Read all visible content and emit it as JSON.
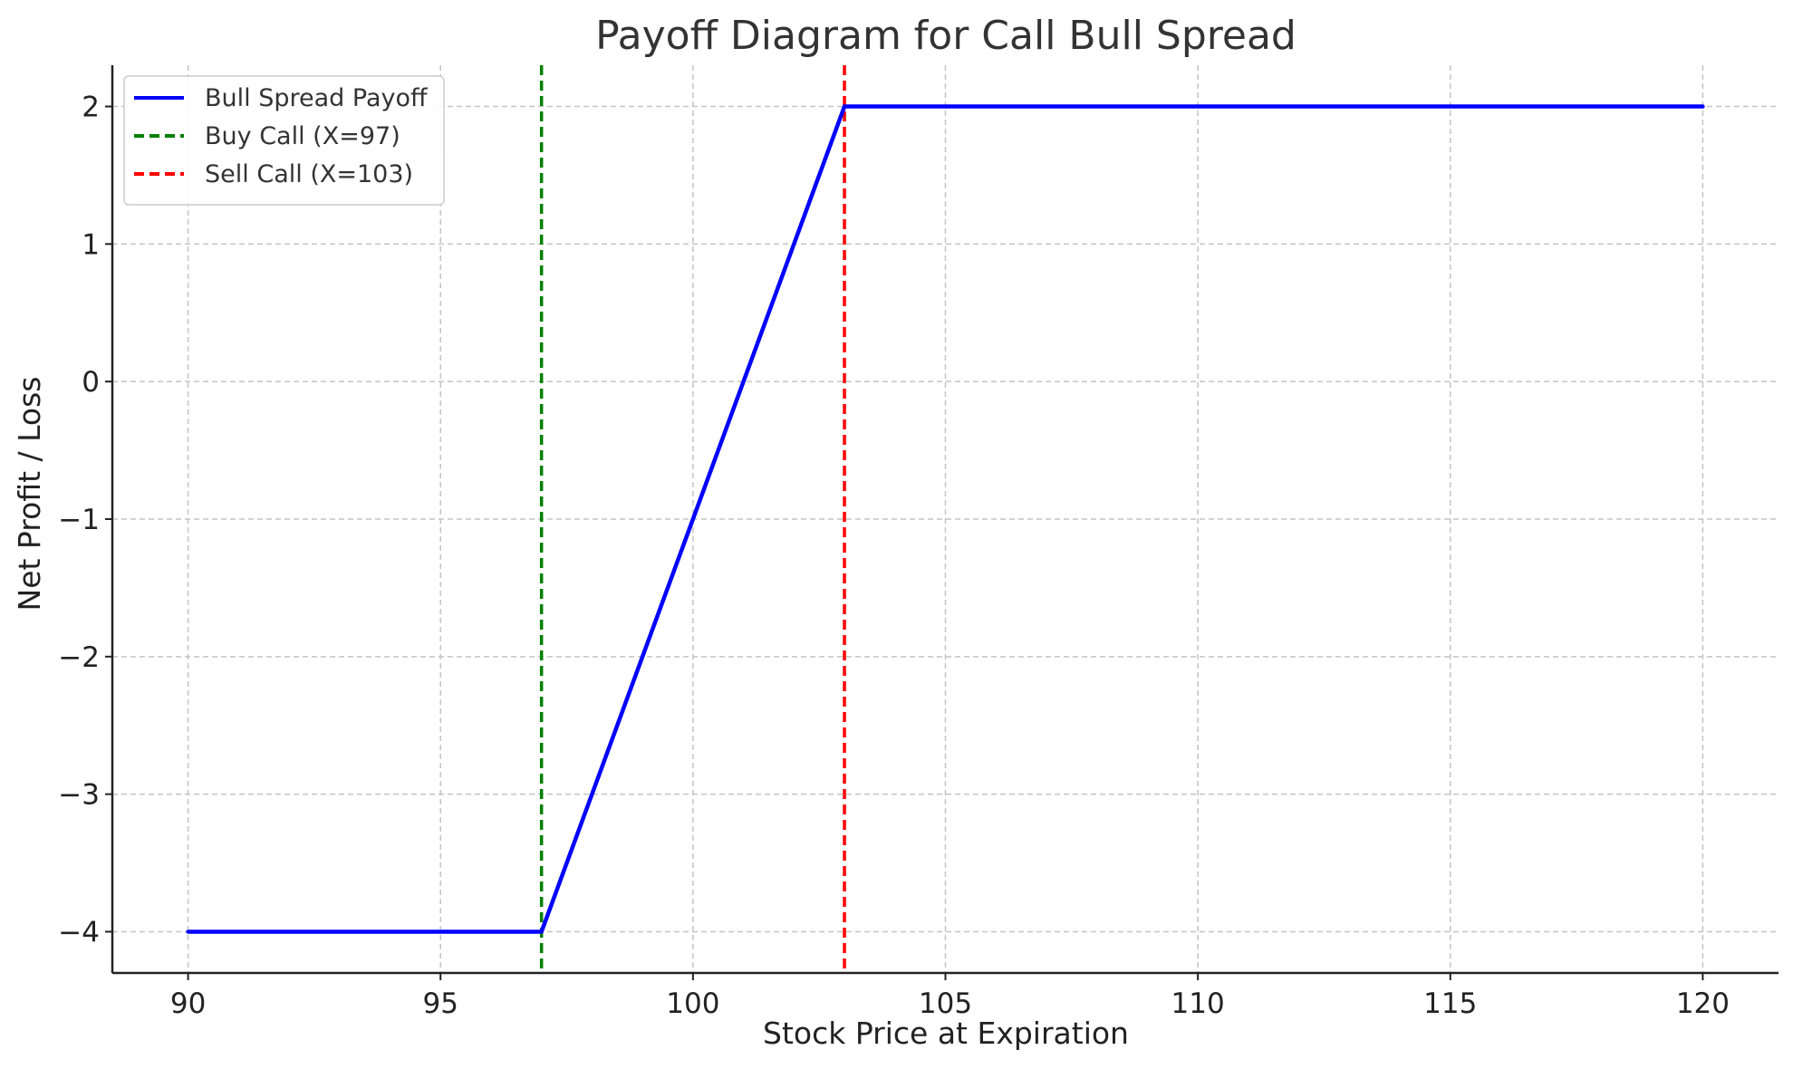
{
  "chart_data": {
    "type": "line",
    "title": "Payoff Diagram for Call Bull Spread",
    "xlabel": "Stock Price at Expiration",
    "ylabel": "Net Profit / Loss",
    "xlim": [
      88.5,
      121.5
    ],
    "ylim": [
      -4.3,
      2.3
    ],
    "xticks": [
      90,
      95,
      100,
      105,
      110,
      115,
      120
    ],
    "yticks": [
      -4,
      -3,
      -2,
      -1,
      0,
      1,
      2
    ],
    "xtick_labels": [
      "90",
      "95",
      "100",
      "105",
      "110",
      "115",
      "120"
    ],
    "ytick_labels": [
      "−4",
      "−3",
      "−2",
      "−1",
      "0",
      "1",
      "2"
    ],
    "grid": true,
    "legend_position": "top-left",
    "series": [
      {
        "name": "Bull Spread Payoff",
        "color": "#0000ff",
        "style": "solid",
        "x": [
          90,
          97,
          103,
          120
        ],
        "y": [
          -4,
          -4,
          2,
          2
        ]
      }
    ],
    "vlines": [
      {
        "name": "Buy Call (X=97)",
        "x": 97,
        "color": "#008000",
        "style": "dashed"
      },
      {
        "name": "Sell Call (X=103)",
        "x": 103,
        "color": "#ff0000",
        "style": "dashed"
      }
    ]
  }
}
